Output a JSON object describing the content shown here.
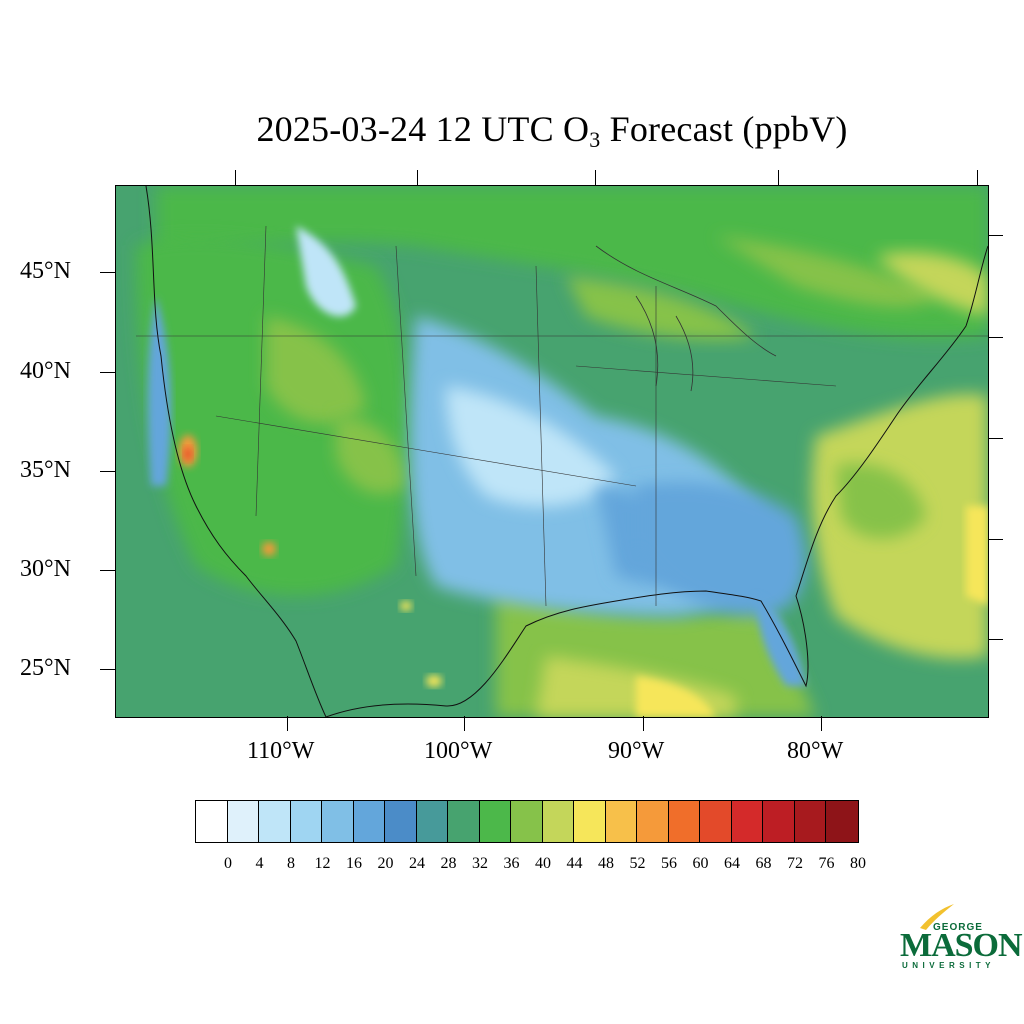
{
  "title": {
    "prefix": "2025-03-24 12 UTC O",
    "subscript": "3",
    "suffix": " Forecast (ppbV)"
  },
  "map": {
    "lat_labels": [
      "45°N",
      "40°N",
      "35°N",
      "30°N",
      "25°N"
    ],
    "lon_labels": [
      "110°W",
      "100°W",
      "90°W",
      "80°W"
    ]
  },
  "legend": {
    "labels": [
      "0",
      "4",
      "8",
      "12",
      "16",
      "20",
      "24",
      "28",
      "32",
      "36",
      "40",
      "44",
      "48",
      "52",
      "56",
      "60",
      "64",
      "68",
      "72",
      "76",
      "80"
    ],
    "colors": [
      "#ffffff",
      "#dff1fb",
      "#bfe5f8",
      "#9fd5f2",
      "#80bfe6",
      "#63a6db",
      "#4b8cc8",
      "#479a9a",
      "#47a36f",
      "#4cb84a",
      "#86c24a",
      "#c4d65a",
      "#f6e65a",
      "#f7c04a",
      "#f59a3a",
      "#f06e2a",
      "#e34a2a",
      "#d42a2a",
      "#bd1e24",
      "#a71a1e",
      "#8e1418"
    ]
  },
  "logo": {
    "top": "GEORGE",
    "main": "MASON",
    "bottom": "UNIVERSITY"
  }
}
